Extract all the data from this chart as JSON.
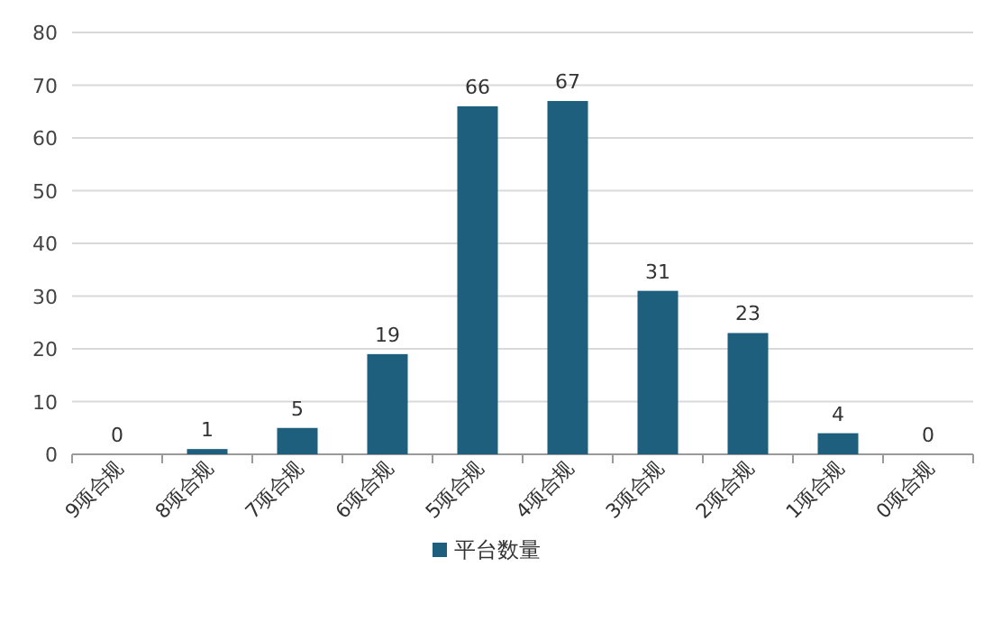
{
  "chart_data": {
    "type": "bar",
    "categories": [
      "9项合规",
      "8项合规",
      "7项合规",
      "6项合规",
      "5项合规",
      "4项合规",
      "3项合规",
      "2项合规",
      "1项合规",
      "0项合规"
    ],
    "series": [
      {
        "name": "平台数量",
        "color": "#1d5f7c",
        "values": [
          0,
          1,
          5,
          19,
          66,
          67,
          31,
          23,
          4,
          0
        ]
      }
    ],
    "ylim": [
      0,
      80
    ],
    "yticks": [
      0,
      10,
      20,
      30,
      40,
      50,
      60,
      70,
      80
    ],
    "grid": "y",
    "data_labels": true,
    "legend": "bottom"
  }
}
